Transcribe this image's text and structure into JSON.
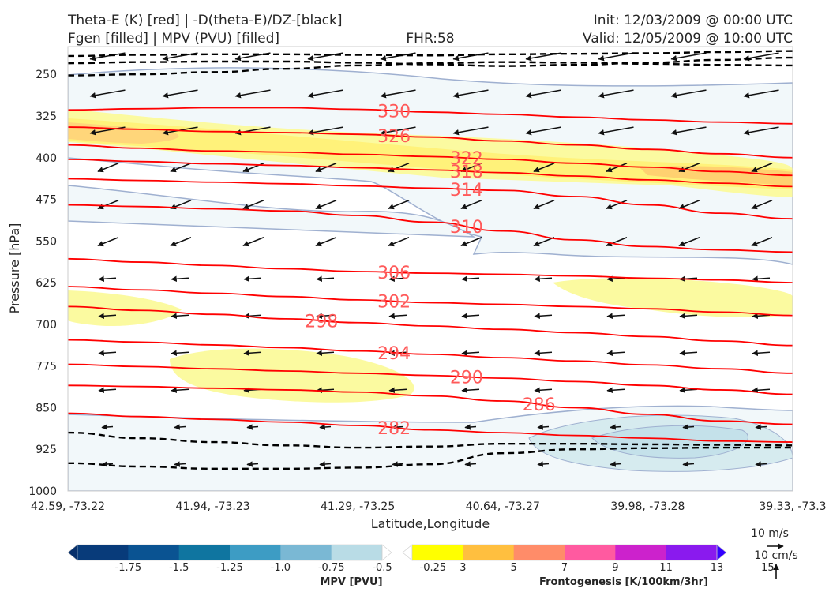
{
  "header": {
    "title_left_1": "Theta-E (K) [red] | -D(theta-E)/DZ-[black]",
    "title_left_2": "Fgen [filled] | MPV (PVU) [filled]",
    "title_center": "FHR:58",
    "title_right_1": "Init: 12/03/2009 @ 00:00 UTC",
    "title_right_2": "Valid: 12/05/2009 @ 10:00 UTC"
  },
  "chart_data": {
    "type": "cross-section",
    "xlabel": "Latitude,Longitude",
    "ylabel": "Pressure [hPa]",
    "x_ticks": [
      "42.59, -73.22",
      "41.94, -73.23",
      "41.29, -73.25",
      "40.64, -73.27",
      "39.98, -73.28",
      "39.33, -73.3"
    ],
    "y_ticks": [
      250,
      325,
      400,
      475,
      550,
      625,
      700,
      775,
      850,
      925,
      1000
    ],
    "ylim": [
      1000,
      200
    ],
    "y_inverted": true,
    "theta_e_color": "#ff0000",
    "theta_e_contours": [
      {
        "label": "330",
        "y": [
          314,
          312,
          310,
          310,
          313,
          318,
          322,
          327,
          332,
          336,
          339
        ]
      },
      {
        "label": "326",
        "y": [
          345,
          349,
          353,
          355,
          358,
          363,
          370,
          377,
          385,
          393,
          400
        ]
      },
      {
        "label": "322",
        "y": [
          377,
          383,
          388,
          390,
          394,
          398,
          403,
          410,
          417,
          425,
          432
        ]
      },
      {
        "label": "318",
        "y": [
          403,
          407,
          411,
          414,
          418,
          422,
          427,
          433,
          440,
          446,
          452
        ]
      },
      {
        "label": "314",
        "y": [
          438,
          441,
          444,
          447,
          451,
          455,
          459,
          470,
          485,
          500,
          510
        ]
      },
      {
        "label": "310",
        "y": [
          485,
          488,
          492,
          496,
          504,
          516,
          532,
          548,
          560,
          566,
          570
        ]
      },
      {
        "label": "306",
        "y": [
          582,
          588,
          594,
          600,
          605,
          608,
          610,
          613,
          617,
          620,
          625
        ]
      },
      {
        "label": "302",
        "y": [
          632,
          638,
          644,
          650,
          656,
          661,
          664,
          668,
          672,
          678,
          684
        ]
      },
      {
        "label": "298",
        "y": [
          668,
          675,
          682,
          690,
          697,
          703,
          709,
          715,
          722,
          730,
          738
        ]
      },
      {
        "label": "294",
        "y": [
          728,
          732,
          737,
          742,
          748,
          754,
          760,
          766,
          773,
          780,
          788
        ]
      },
      {
        "label": "290",
        "y": [
          772,
          776,
          780,
          784,
          788,
          792,
          797,
          803,
          810,
          818,
          826
        ]
      },
      {
        "label": "286",
        "y": [
          810,
          812,
          815,
          818,
          822,
          829,
          838,
          850,
          862,
          874,
          880
        ]
      },
      {
        "label": "282",
        "y": [
          860,
          866,
          871,
          876,
          882,
          890,
          895,
          900,
          905,
          910,
          912
        ]
      }
    ],
    "dthetae_dz_color": "#000000",
    "dthetae_dz_contours": [
      {
        "y": [
          217,
          215,
          214,
          214,
          215,
          216,
          214,
          213,
          212,
          210,
          208
        ]
      },
      {
        "y": [
          230,
          228,
          227,
          227,
          229,
          232,
          235,
          233,
          229,
          224,
          220
        ]
      },
      {
        "y": [
          252,
          250,
          246,
          240,
          234,
          230,
          228,
          229,
          231,
          233,
          234
        ]
      },
      {
        "y": [
          895,
          905,
          912,
          918,
          922,
          920,
          915,
          915,
          916,
          917,
          918
        ]
      },
      {
        "y": [
          950,
          956,
          960,
          960,
          958,
          952,
          932,
          925,
          923,
          922,
          922
        ]
      }
    ],
    "wind_scale_labels": [
      "10 m/s",
      "10 cm/s"
    ],
    "colorbar_mpv": {
      "title": "MPV [PVU]",
      "tick_labels": [
        "-1.75",
        "-1.5",
        "-1.25",
        "-1.0",
        "-0.75",
        "-0.5",
        "-0.25"
      ],
      "colors": [
        "#08306b",
        "#083b7a",
        "#0a5392",
        "#0f75a0",
        "#3d9cc4",
        "#7ab8d4",
        "#b9dce6",
        "#ffffff"
      ]
    },
    "colorbar_fgen": {
      "title": "Frontogenesis [K/100km/3hr]",
      "tick_labels": [
        "3",
        "5",
        "7",
        "9",
        "11",
        "13",
        "15"
      ],
      "colors": [
        "#ffffff",
        "#ffff00",
        "#ffbf3f",
        "#ff8c69",
        "#ff5aa0",
        "#cc22cc",
        "#8a1aee",
        "#3300ff"
      ]
    }
  }
}
